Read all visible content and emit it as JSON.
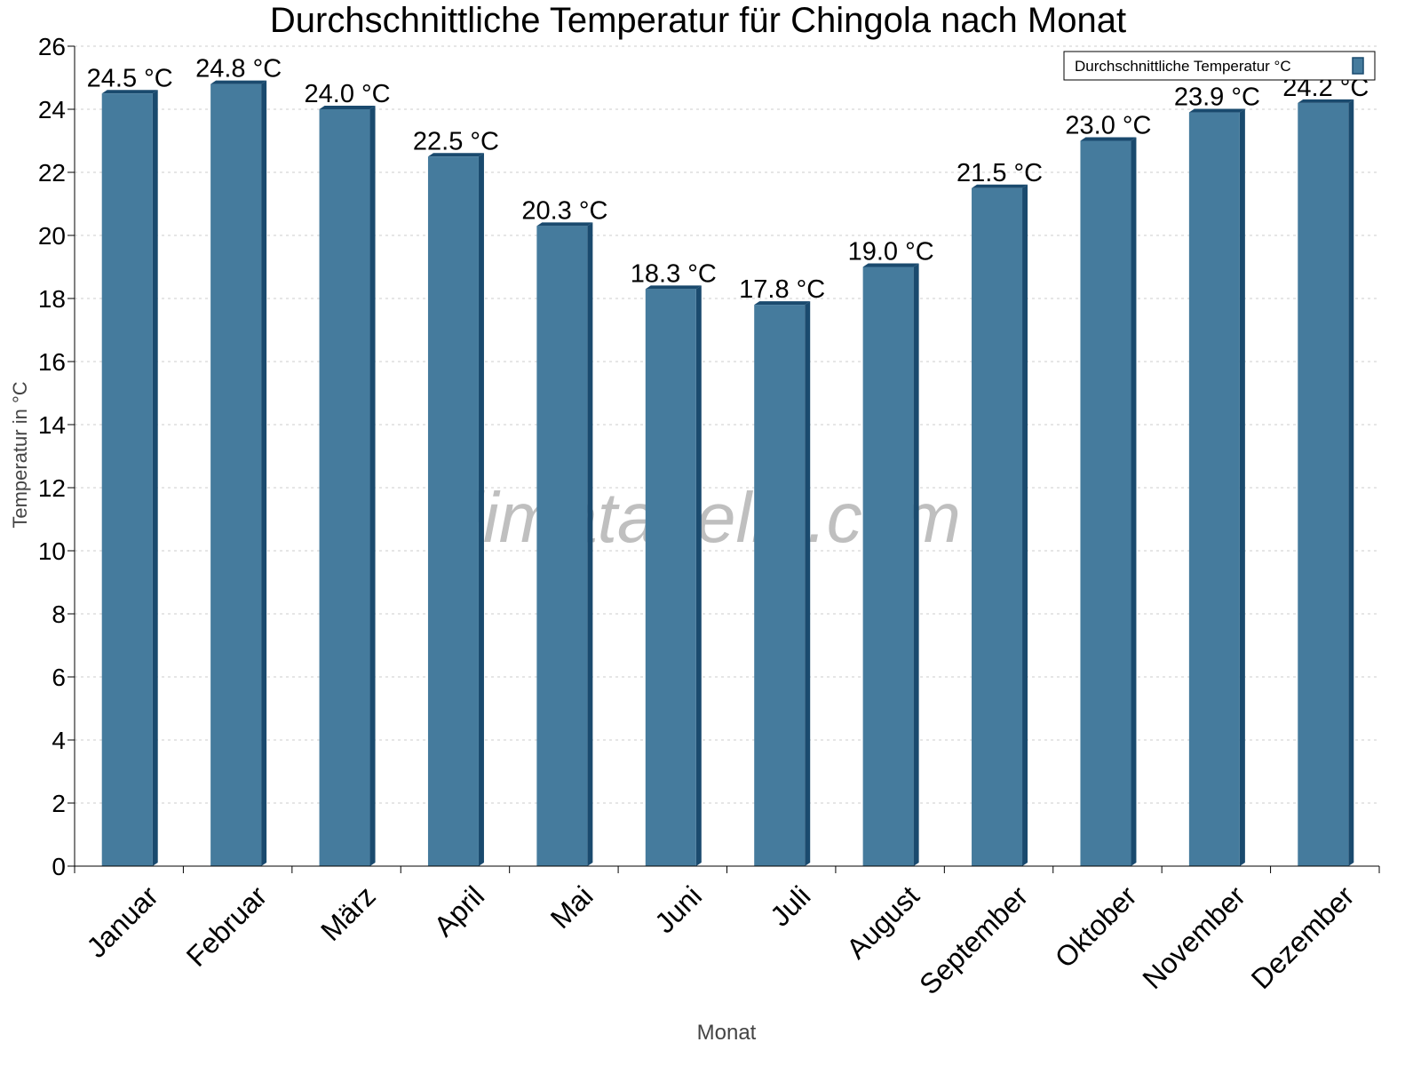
{
  "chart_data": {
    "type": "bar",
    "title": "Durchschnittliche Temperatur für Chingola nach Monat",
    "xlabel": "Monat",
    "ylabel": "Temperatur in °C",
    "ylim": [
      0,
      26
    ],
    "yticks": [
      0,
      2,
      4,
      6,
      8,
      10,
      12,
      14,
      16,
      18,
      20,
      22,
      24,
      26
    ],
    "grid": true,
    "legend_placement": "top-right",
    "categories": [
      "Januar",
      "Februar",
      "März",
      "April",
      "Mai",
      "Juni",
      "Juli",
      "August",
      "September",
      "Oktober",
      "November",
      "Dezember"
    ],
    "series": [
      {
        "name": "Durchschnittliche Temperatur °C",
        "values": [
          24.5,
          24.8,
          24.0,
          22.5,
          20.3,
          18.3,
          17.8,
          19.0,
          21.5,
          23.0,
          23.9,
          24.2
        ],
        "labels": [
          "24.5 °C",
          "24.8 °C",
          "24.0 °C",
          "22.5 °C",
          "20.3 °C",
          "18.3 °C",
          "17.8 °C",
          "19.0 °C",
          "21.5 °C",
          "23.0 °C",
          "23.9 °C",
          "24.2 °C"
        ]
      }
    ],
    "colors": {
      "bar": "#457b9d",
      "bar_side": "#1a4a6e"
    },
    "watermark": "klimatabelle.com"
  }
}
